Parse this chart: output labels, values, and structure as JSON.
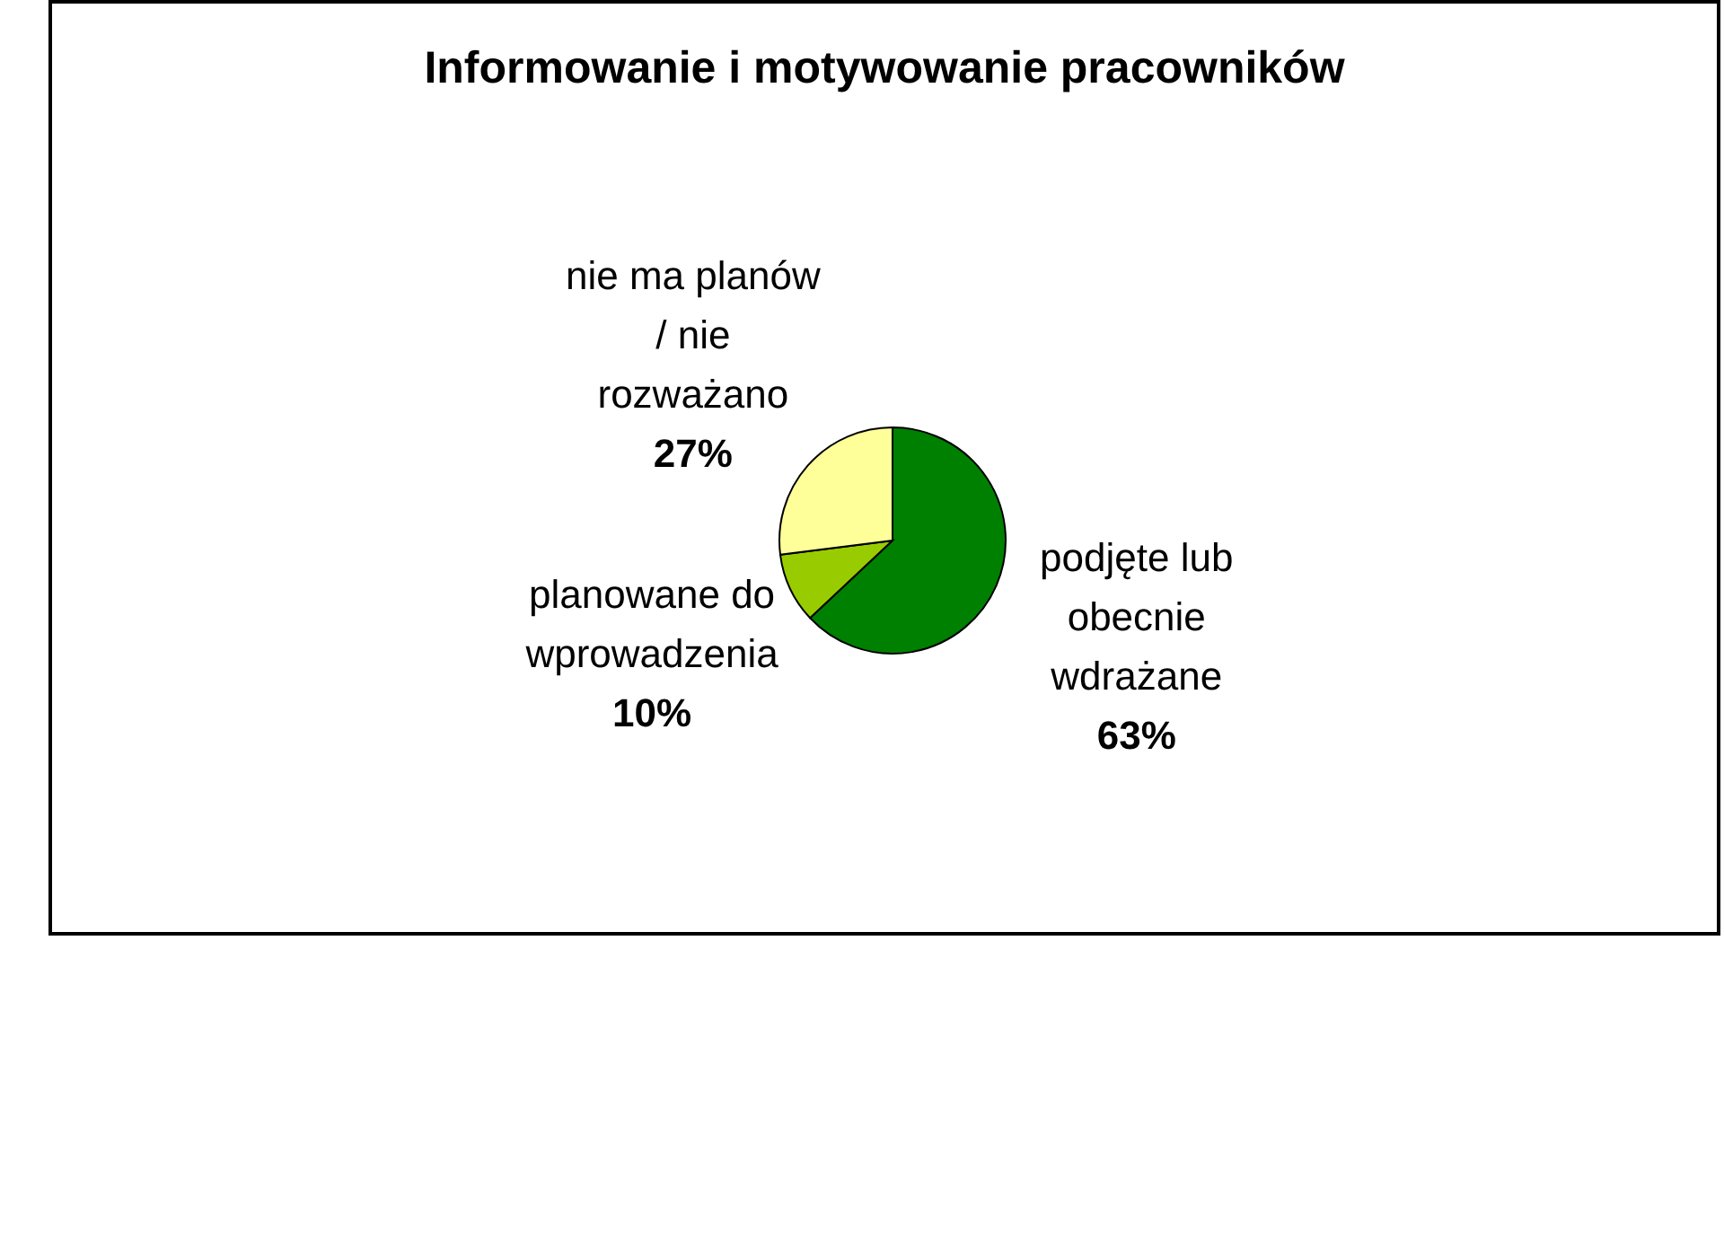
{
  "chart_data": {
    "type": "pie",
    "title": "Informowanie i motywowanie pracowników",
    "categories": [
      "podjęte lub obecnie wdrażane",
      "planowane do wprowadzenia",
      "nie ma planów / nie rozważano"
    ],
    "values": [
      63,
      10,
      27
    ],
    "value_labels": [
      "63%",
      "10%",
      "27%"
    ],
    "colors": [
      "#008000",
      "#99cc00",
      "#ffff99"
    ]
  }
}
